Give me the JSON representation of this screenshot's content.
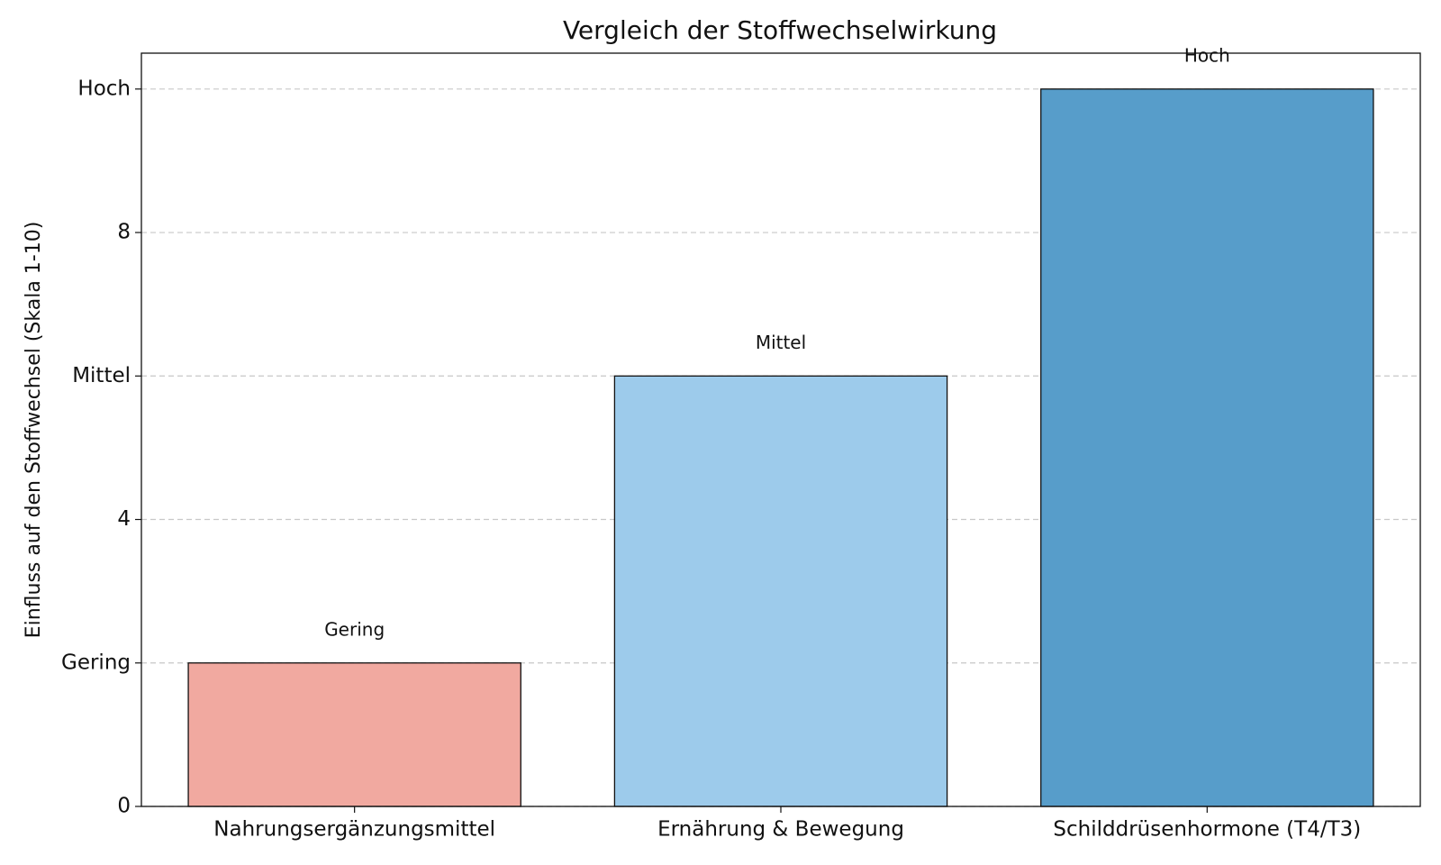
{
  "chart_data": {
    "type": "bar",
    "title": "Vergleich der Stoffwechselwirkung",
    "ylabel": "Einfluss auf den Stoffwechsel (Skala 1-10)",
    "categories": [
      "Nahrungsergänzungsmittel",
      "Ernährung & Bewegung",
      "Schilddrüsenhormone (T4/T3)"
    ],
    "values": [
      2,
      6,
      10
    ],
    "value_labels": [
      "Gering",
      "Mittel",
      "Hoch"
    ],
    "colors": [
      "#f1a9a0",
      "#9dcbeb",
      "#579dca"
    ],
    "ylim": [
      0,
      10.5
    ],
    "yticks": [
      0,
      {
        "value": 2,
        "label": "Gering"
      },
      4,
      {
        "value": 6,
        "label": "Mittel"
      },
      8,
      {
        "value": 10,
        "label": "Hoch"
      }
    ],
    "grid": true
  }
}
